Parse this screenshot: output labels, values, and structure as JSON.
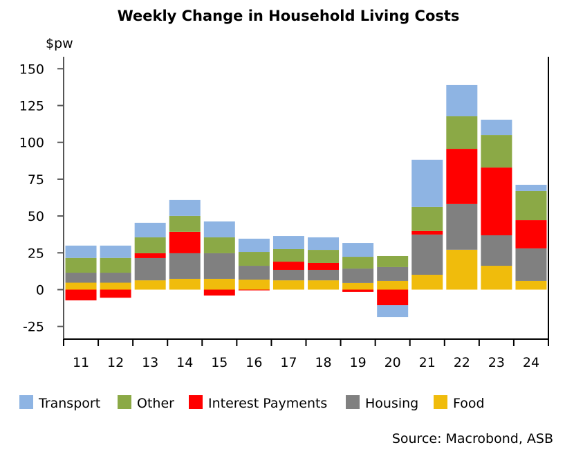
{
  "chart_data": {
    "type": "bar",
    "stacked": true,
    "title": "Weekly Change in Household Living Costs",
    "ylabel": "$pw",
    "xlabel": "",
    "ylim": [
      -25,
      150
    ],
    "yticks": [
      150,
      125,
      100,
      75,
      50,
      25,
      0,
      -25
    ],
    "ytick_labels": [
      "150",
      "125",
      "100",
      "75",
      "50",
      "25",
      "0",
      "-25"
    ],
    "categories": [
      "11",
      "12",
      "13",
      "14",
      "15",
      "16",
      "17",
      "18",
      "19",
      "20",
      "21",
      "22",
      "23",
      "24"
    ],
    "series": [
      {
        "name": "Food",
        "color": "#F0BC0C",
        "values": [
          4.7,
          4.7,
          6.3,
          7.3,
          7.3,
          6.8,
          6.3,
          6.3,
          4.5,
          5.9,
          10.1,
          27.1,
          16.2,
          5.9
        ]
      },
      {
        "name": "Housing",
        "color": "#808080",
        "values": [
          6.8,
          6.8,
          15.1,
          17.4,
          17.4,
          9.4,
          7.1,
          7.1,
          9.8,
          9.4,
          27.3,
          31.0,
          20.7,
          22.1
        ]
      },
      {
        "name": "Interest Payments",
        "color": "#FF0000",
        "values": [
          -7.3,
          -5.5,
          3.3,
          14.6,
          -4.0,
          -0.5,
          5.6,
          4.7,
          -1.6,
          -10.6,
          2.4,
          37.5,
          46.0,
          19.2
        ]
      },
      {
        "name": "Other",
        "color": "#8BA946",
        "values": [
          10.0,
          10.0,
          10.8,
          10.8,
          10.8,
          9.4,
          8.5,
          8.9,
          8.0,
          7.5,
          16.4,
          22.1,
          22.1,
          19.8
        ]
      },
      {
        "name": "Transport",
        "color": "#8EB4E3",
        "values": [
          8.4,
          8.4,
          9.9,
          10.8,
          10.8,
          9.0,
          8.9,
          8.5,
          9.4,
          -8.0,
          32.0,
          21.2,
          10.4,
          4.2
        ]
      }
    ],
    "legend": {
      "placement": "bottom",
      "order": [
        "Transport",
        "Other",
        "Interest Payments",
        "Housing",
        "Food"
      ]
    },
    "grid": false,
    "source": "Source: Macrobond, ASB"
  }
}
